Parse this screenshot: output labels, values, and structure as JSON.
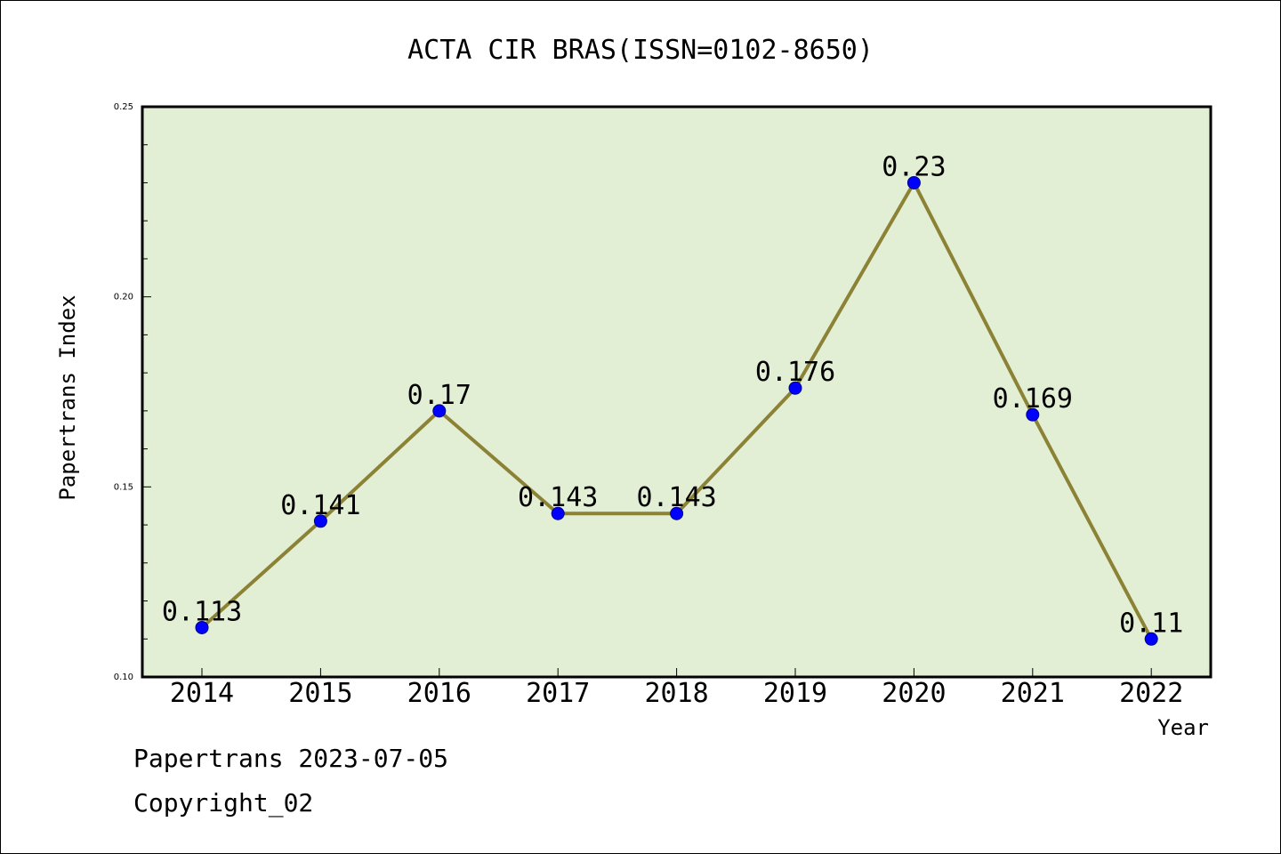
{
  "chart_data": {
    "type": "line",
    "title": "ACTA CIR BRAS(ISSN=0102-8650)",
    "xlabel": "Year",
    "ylabel": "Papertrans Index",
    "categories": [
      "2014",
      "2015",
      "2016",
      "2017",
      "2018",
      "2019",
      "2020",
      "2021",
      "2022"
    ],
    "values": [
      0.113,
      0.141,
      0.17,
      0.143,
      0.143,
      0.176,
      0.23,
      0.169,
      0.11
    ],
    "data_labels": [
      "0.113",
      "0.141",
      "0.17",
      "0.143",
      "0.143",
      "0.176",
      "0.23",
      "0.169",
      "0.11"
    ],
    "ylim": [
      0.1,
      0.25
    ],
    "yticks": [
      "0.10",
      "0.15",
      "0.20",
      "0.25"
    ],
    "grid": false,
    "legend": "none",
    "colors": {
      "plot_background": "#e2efd4",
      "line": "#8b8236",
      "marker": "#0000ff",
      "marker_edge": "#00008b"
    }
  },
  "footer": {
    "date_line": "Papertrans 2023-07-05",
    "copyright": "Copyright_02"
  }
}
